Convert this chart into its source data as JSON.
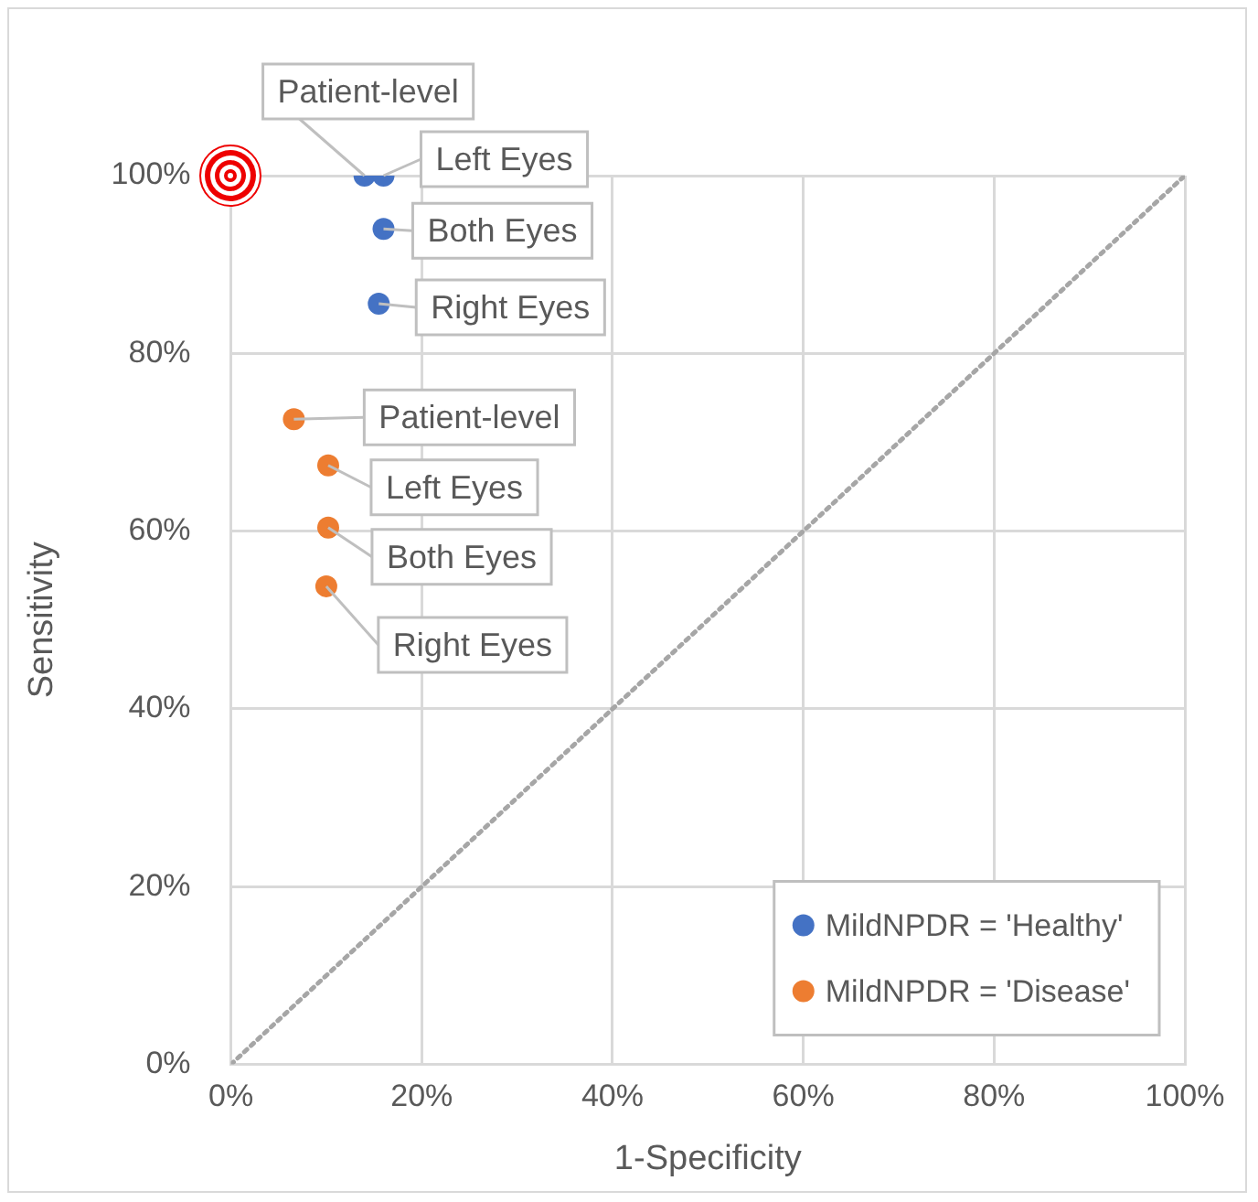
{
  "chart_data": {
    "type": "scatter",
    "xlabel": "1-Specificity",
    "ylabel": "Sensitivity",
    "xlim": [
      0,
      100
    ],
    "ylim": [
      0,
      100
    ],
    "xticks": [
      {
        "value": 0,
        "label": "0%"
      },
      {
        "value": 20,
        "label": "20%"
      },
      {
        "value": 40,
        "label": "40%"
      },
      {
        "value": 60,
        "label": "60%"
      },
      {
        "value": 80,
        "label": "80%"
      },
      {
        "value": 100,
        "label": "100%"
      }
    ],
    "yticks": [
      {
        "value": 0,
        "label": "0%"
      },
      {
        "value": 20,
        "label": "20%"
      },
      {
        "value": 40,
        "label": "40%"
      },
      {
        "value": 60,
        "label": "60%"
      },
      {
        "value": 80,
        "label": "80%"
      },
      {
        "value": 100,
        "label": "100%"
      }
    ],
    "grid": true,
    "legend": "bottom right",
    "marker": "circle",
    "series": [
      {
        "name": "MildNPDR = 'Healthy'",
        "color": "#4472c4",
        "x": [
          14,
          16,
          16,
          15.5
        ],
        "values": [
          100,
          100,
          94,
          85.6
        ]
      },
      {
        "name": "MildNPDR = 'Disease'",
        "color": "#ed7d31",
        "x": [
          6.6,
          10.2,
          10.2,
          10
        ],
        "values": [
          72.6,
          67.4,
          60.4,
          53.8
        ]
      },
      {
        "type": "line",
        "color": "#a6a6a6",
        "x": [
          0,
          100
        ],
        "values": [
          0,
          100
        ],
        "marker": "none",
        "line_style": "dotted"
      }
    ],
    "annotations": [
      {
        "text": "Patient-level",
        "x": 14,
        "y": 100
      },
      {
        "text": "Left Eyes",
        "x": 16,
        "y": 100
      },
      {
        "text": "Both Eyes",
        "x": 16,
        "y": 94
      },
      {
        "text": "Right Eyes",
        "x": 15.5,
        "y": 85.6
      },
      {
        "text": "Patient-level",
        "x": 6.6,
        "y": 72.6
      },
      {
        "text": "Left Eyes",
        "x": 10.2,
        "y": 67.4
      },
      {
        "text": "Both Eyes",
        "x": 10.2,
        "y": 60.4
      },
      {
        "text": "Right Eyes",
        "x": 10,
        "y": 53.8
      }
    ]
  }
}
